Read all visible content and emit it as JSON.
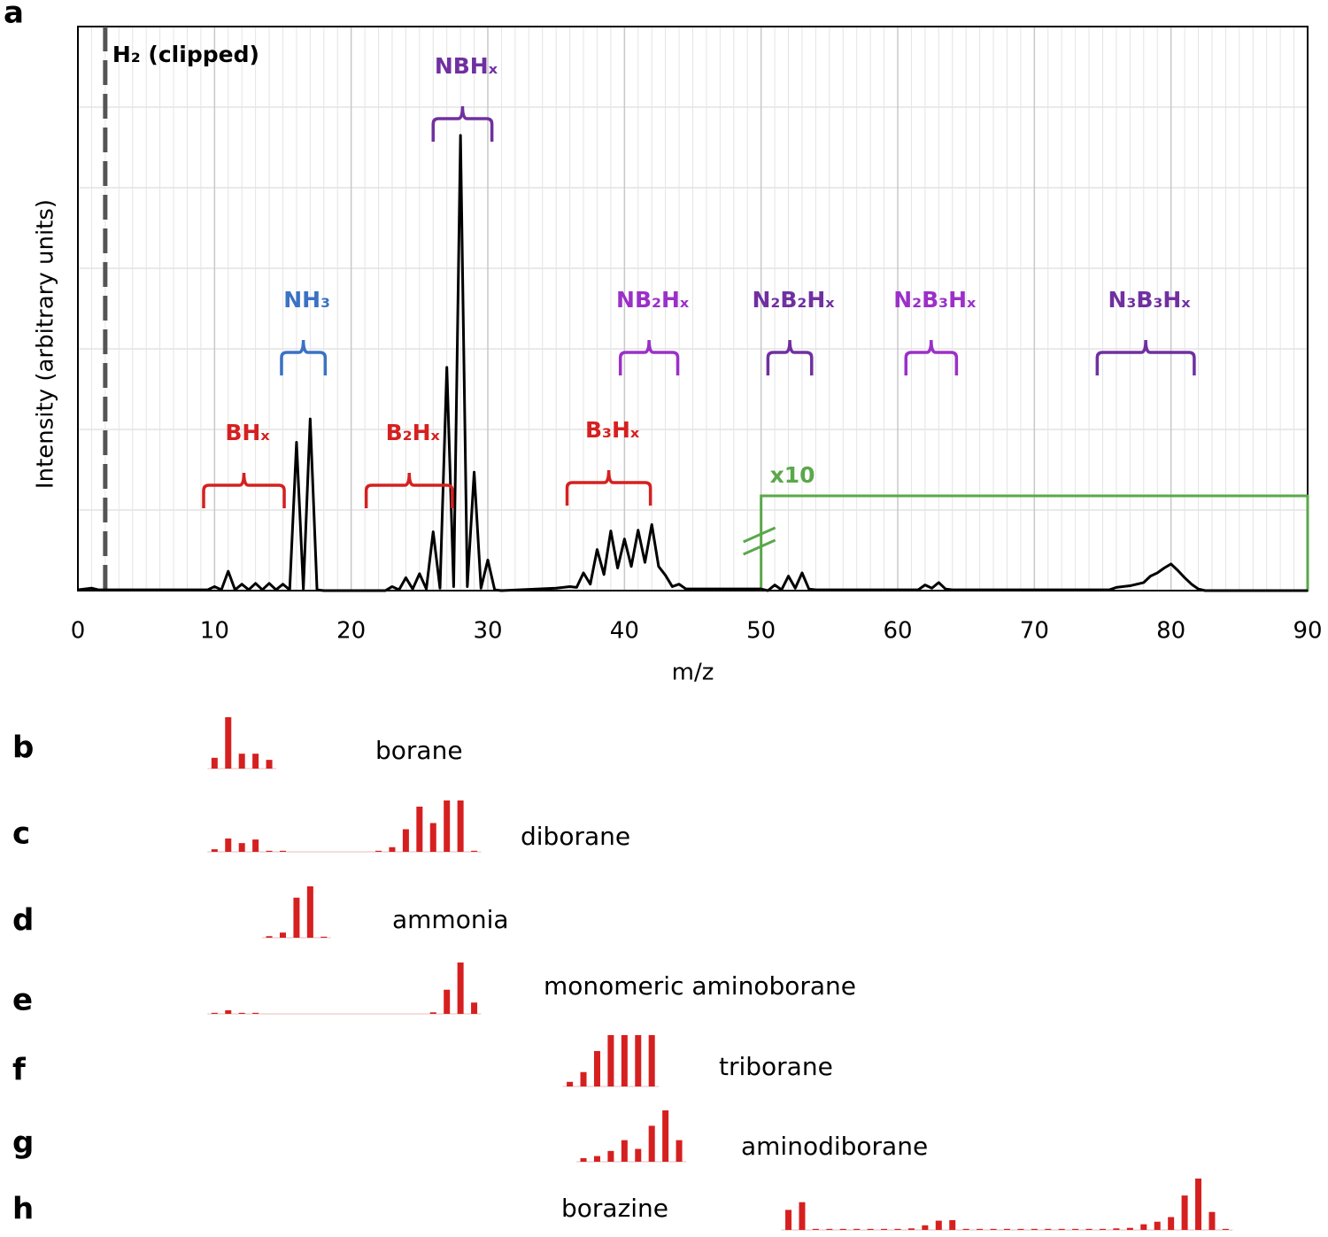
{
  "chart_data": [
    {
      "type": "line",
      "panel_label": "a",
      "xlabel": "m/z",
      "ylabel": "Intensity (arbitrary units)",
      "xlim": [
        0,
        90
      ],
      "ylim": [
        0,
        7
      ],
      "xticks": [
        0,
        10,
        20,
        30,
        40,
        50,
        60,
        70,
        80,
        90
      ],
      "grid": true,
      "color": "#000000",
      "x": [
        0,
        1,
        1.5,
        9.5,
        10,
        10.5,
        11,
        11.5,
        12,
        12.5,
        13,
        13.5,
        14,
        14.5,
        15,
        15.5,
        16,
        16.5,
        17,
        17.5,
        18,
        22.5,
        23,
        23.5,
        24,
        24.5,
        25,
        25.5,
        26,
        26.5,
        27,
        27.5,
        28,
        28.5,
        29,
        29.5,
        30,
        30.5,
        31,
        35,
        36,
        36.5,
        37,
        37.5,
        38,
        38.5,
        39,
        39.5,
        40,
        40.5,
        41,
        41.5,
        42,
        42.5,
        43,
        43.5,
        44,
        44.5,
        45,
        50,
        50.5,
        51,
        51.5,
        52,
        52.5,
        53,
        53.5,
        54,
        61.5,
        62,
        62.5,
        63,
        63.5,
        64,
        75.5,
        76,
        77,
        78,
        78.5,
        79,
        79.5,
        80,
        80.5,
        81,
        81.5,
        82,
        82.5,
        90
      ],
      "values": [
        0.01,
        0.03,
        0.01,
        0.01,
        0.05,
        0.01,
        0.24,
        0.01,
        0.08,
        0.01,
        0.09,
        0.01,
        0.09,
        0.01,
        0.08,
        0.01,
        1.84,
        0.02,
        2.13,
        0.01,
        0,
        0,
        0.05,
        0.01,
        0.16,
        0.02,
        0.21,
        0.02,
        0.73,
        0.03,
        2.77,
        0.05,
        5.65,
        0.05,
        1.47,
        0.03,
        0.38,
        0.01,
        0,
        0.03,
        0.05,
        0.04,
        0.22,
        0.08,
        0.51,
        0.2,
        0.74,
        0.28,
        0.64,
        0.3,
        0.75,
        0.35,
        0.82,
        0.3,
        0.19,
        0.05,
        0.08,
        0.02,
        0.02,
        0.02,
        0,
        0.07,
        0.01,
        0.18,
        0.03,
        0.22,
        0.02,
        0.01,
        0.01,
        0.07,
        0.03,
        0.1,
        0.02,
        0.01,
        0.01,
        0.04,
        0.06,
        0.1,
        0.18,
        0.22,
        0.28,
        0.33,
        0.25,
        0.16,
        0.08,
        0.02,
        0,
        0
      ],
      "marker_line": {
        "text": "H₂ (clipped)",
        "x": 2,
        "color": "#555555"
      },
      "brackets": [
        {
          "text": "BHₓ",
          "range": [
            9.2,
            15.1
          ],
          "color": "#d62020"
        },
        {
          "text": "NH₃",
          "range": [
            14.9,
            18.1
          ],
          "color": "#3a72c4"
        },
        {
          "text": "B₂Hₓ",
          "range": [
            21.1,
            27.4
          ],
          "color": "#d62020"
        },
        {
          "text": "NBHₓ",
          "range": [
            26,
            30.3
          ],
          "color": "#7030a0"
        },
        {
          "text": "B₃Hₓ",
          "range": [
            35.8,
            41.9
          ],
          "color": "#d62020"
        },
        {
          "text": "NB₂Hₓ",
          "range": [
            39.7,
            43.9
          ],
          "color": "#9b30c8"
        },
        {
          "text": "N₂B₂Hₓ",
          "range": [
            50.5,
            53.7
          ],
          "color": "#7030a0"
        },
        {
          "text": "N₂B₃Hₓ",
          "range": [
            60.6,
            64.3
          ],
          "color": "#9b30c8"
        },
        {
          "text": "N₃B₃Hₓ",
          "range": [
            74.6,
            81.7
          ],
          "color": "#7030a0"
        }
      ],
      "scaled_region": {
        "text": "x10",
        "range": [
          50,
          90
        ],
        "color": "#5aa84a"
      }
    },
    {
      "type": "stick",
      "panel_label": "b",
      "title": "borane",
      "color": "#d62020",
      "x": [
        10,
        11,
        12,
        13,
        14
      ],
      "values": [
        21,
        100,
        29,
        29,
        17
      ]
    },
    {
      "type": "stick",
      "panel_label": "c",
      "title": "diborane",
      "color": "#d62020",
      "x": [
        10,
        11,
        12,
        13,
        14,
        15,
        22,
        23,
        24,
        25,
        26,
        27,
        28,
        29
      ],
      "values": [
        5,
        26,
        17,
        24,
        2,
        2,
        2,
        9,
        44,
        88,
        56,
        100,
        100,
        2
      ]
    },
    {
      "type": "stick",
      "panel_label": "d",
      "title": "ammonia",
      "color": "#d62020",
      "x": [
        14,
        15,
        16,
        17,
        18
      ],
      "values": [
        3,
        10,
        78,
        100,
        2
      ]
    },
    {
      "type": "stick",
      "panel_label": "e",
      "title": "monomeric aminoborane",
      "color": "#d62020",
      "x": [
        10,
        11,
        12,
        13,
        26,
        27,
        28,
        29
      ],
      "values": [
        2,
        7,
        2,
        2,
        3,
        47,
        100,
        22
      ]
    },
    {
      "type": "stick",
      "panel_label": "f",
      "title": "triborane",
      "color": "#d62020",
      "x": [
        36,
        37,
        38,
        39,
        40,
        41,
        42
      ],
      "values": [
        9,
        28,
        69,
        100,
        100,
        100,
        100
      ]
    },
    {
      "type": "stick",
      "panel_label": "g",
      "title": "aminodiborane",
      "color": "#d62020",
      "x": [
        37,
        38,
        39,
        40,
        41,
        42,
        43,
        44
      ],
      "values": [
        7,
        11,
        21,
        42,
        25,
        70,
        100,
        42
      ]
    },
    {
      "type": "stick",
      "panel_label": "h",
      "title": "borazine",
      "color": "#d62020",
      "x": [
        52,
        53,
        54,
        55,
        56,
        57,
        58,
        59,
        60,
        61,
        62,
        63,
        64,
        65,
        66,
        67,
        68,
        69,
        70,
        71,
        72,
        73,
        74,
        75,
        76,
        77,
        78,
        79,
        80,
        81,
        82,
        83,
        84
      ],
      "values": [
        39,
        54,
        2,
        2,
        2,
        2,
        2,
        2,
        2,
        3,
        9,
        18,
        19,
        2,
        2,
        2,
        2,
        2,
        2,
        2,
        2,
        2,
        2,
        2,
        3,
        4,
        11,
        16,
        25,
        67,
        100,
        35,
        2
      ]
    }
  ]
}
